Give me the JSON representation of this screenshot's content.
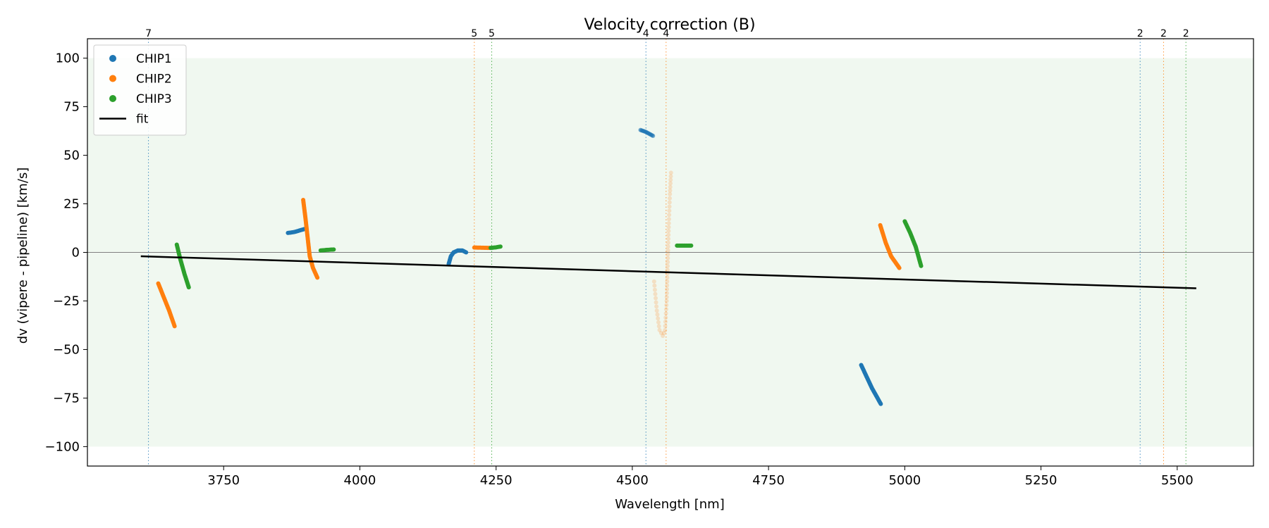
{
  "chart_data": {
    "type": "scatter",
    "title": "Velocity correction (B)",
    "xlabel": "Wavelength [nm]",
    "ylabel": "dv (vipere - pipeline) [km/s]",
    "xlim": [
      3500,
      5640
    ],
    "ylim": [
      -110,
      110
    ],
    "xticks": [
      3750,
      4000,
      4250,
      4500,
      4750,
      5000,
      5250,
      5500
    ],
    "yticks": [
      100,
      75,
      50,
      25,
      0,
      -25,
      -50,
      -75,
      -100
    ],
    "xtick_labels": [
      "3750",
      "4000",
      "4250",
      "4500",
      "4750",
      "5000",
      "5250",
      "5500"
    ],
    "ytick_labels": [
      "100",
      "75",
      "50",
      "25",
      "0",
      "−25",
      "−50",
      "−75",
      "−100"
    ],
    "grid": false,
    "shaded_band": {
      "y": [
        -100,
        100
      ],
      "color": "#2ca02c",
      "opacity": 0.07
    },
    "zero_line": {
      "y": 0,
      "color": "#808080"
    },
    "legend": {
      "placement": "upper left",
      "entries": [
        {
          "label": "CHIP1",
          "kind": "marker",
          "color": "#1f77b4"
        },
        {
          "label": "CHIP2",
          "kind": "marker",
          "color": "#ff7f0e"
        },
        {
          "label": "CHIP3",
          "kind": "marker",
          "color": "#2ca02c"
        },
        {
          "label": "fit",
          "kind": "line",
          "color": "#000000"
        }
      ]
    },
    "order_markers": [
      {
        "x": 3612,
        "label": "7",
        "color": "#1f77b4"
      },
      {
        "x": 4210,
        "label": "5",
        "color": "#ff7f0e"
      },
      {
        "x": 4242,
        "label": "5",
        "color": "#2ca02c"
      },
      {
        "x": 4525,
        "label": "4",
        "color": "#1f77b4"
      },
      {
        "x": 4562,
        "label": "4",
        "color": "#ff7f0e"
      },
      {
        "x": 5432,
        "label": "2",
        "color": "#1f77b4"
      },
      {
        "x": 5475,
        "label": "2",
        "color": "#ff7f0e"
      },
      {
        "x": 5516,
        "label": "2",
        "color": "#2ca02c"
      }
    ],
    "series": [
      {
        "name": "CHIP1",
        "color": "#1f77b4",
        "segments": [
          {
            "points": [
              [
                3868,
                10
              ],
              [
                3880,
                10.5
              ],
              [
                3892,
                11.5
              ],
              [
                3898,
                12
              ]
            ],
            "alpha": 1.0
          },
          {
            "points": [
              [
                4163,
                -6
              ],
              [
                4167,
                -2
              ],
              [
                4172,
                0
              ],
              [
                4180,
                1
              ],
              [
                4188,
                1
              ],
              [
                4195,
                0
              ]
            ],
            "alpha": 1.0
          },
          {
            "points": [
              [
                4515,
                63
              ],
              [
                4525,
                62
              ],
              [
                4538,
                60
              ]
            ],
            "alpha": 0.6
          },
          {
            "points": [
              [
                4920,
                -58
              ],
              [
                4930,
                -64
              ],
              [
                4940,
                -70
              ],
              [
                4950,
                -75
              ],
              [
                4956,
                -78
              ]
            ],
            "alpha": 1.0
          }
        ]
      },
      {
        "name": "CHIP2",
        "color": "#ff7f0e",
        "segments": [
          {
            "points": [
              [
                3630,
                -16
              ],
              [
                3640,
                -23
              ],
              [
                3650,
                -30
              ],
              [
                3660,
                -38
              ]
            ],
            "alpha": 1.0
          },
          {
            "points": [
              [
                3896,
                27
              ],
              [
                3900,
                18
              ],
              [
                3904,
                8
              ],
              [
                3908,
                -2
              ],
              [
                3914,
                -8
              ],
              [
                3922,
                -13
              ]
            ],
            "alpha": 1.0
          },
          {
            "points": [
              [
                4210,
                2.5
              ],
              [
                4225,
                2.4
              ],
              [
                4238,
                2.3
              ]
            ],
            "alpha": 1.0
          },
          {
            "points": [
              [
                4540,
                -15
              ],
              [
                4545,
                -30
              ],
              [
                4550,
                -40
              ],
              [
                4556,
                -43
              ],
              [
                4560,
                -40
              ],
              [
                4563,
                -25
              ],
              [
                4565,
                -5
              ],
              [
                4567,
                15
              ],
              [
                4569,
                30
              ],
              [
                4571,
                41
              ]
            ],
            "alpha": 0.2
          },
          {
            "points": [
              [
                4955,
                14
              ],
              [
                4965,
                5
              ],
              [
                4975,
                -2
              ],
              [
                4990,
                -8
              ]
            ],
            "alpha": 1.0
          }
        ]
      },
      {
        "name": "CHIP3",
        "color": "#2ca02c",
        "segments": [
          {
            "points": [
              [
                3664,
                4
              ],
              [
                3670,
                -3
              ],
              [
                3678,
                -11
              ],
              [
                3686,
                -18
              ]
            ],
            "alpha": 1.0
          },
          {
            "points": [
              [
                3928,
                1
              ],
              [
                3940,
                1.3
              ],
              [
                3952,
                1.5
              ]
            ],
            "alpha": 1.0
          },
          {
            "points": [
              [
                4240,
                2.3
              ],
              [
                4250,
                2.6
              ],
              [
                4258,
                3
              ]
            ],
            "alpha": 1.0
          },
          {
            "points": [
              [
                4582,
                3.5
              ],
              [
                4595,
                3.5
              ],
              [
                4608,
                3.5
              ]
            ],
            "alpha": 1.0
          },
          {
            "points": [
              [
                5000,
                16
              ],
              [
                5010,
                10
              ],
              [
                5020,
                3
              ],
              [
                5030,
                -7
              ]
            ],
            "alpha": 1.0
          }
        ]
      }
    ],
    "fit": {
      "name": "fit",
      "color": "#000000",
      "points": [
        [
          3598,
          -2
        ],
        [
          5535,
          -18.5
        ]
      ]
    }
  }
}
